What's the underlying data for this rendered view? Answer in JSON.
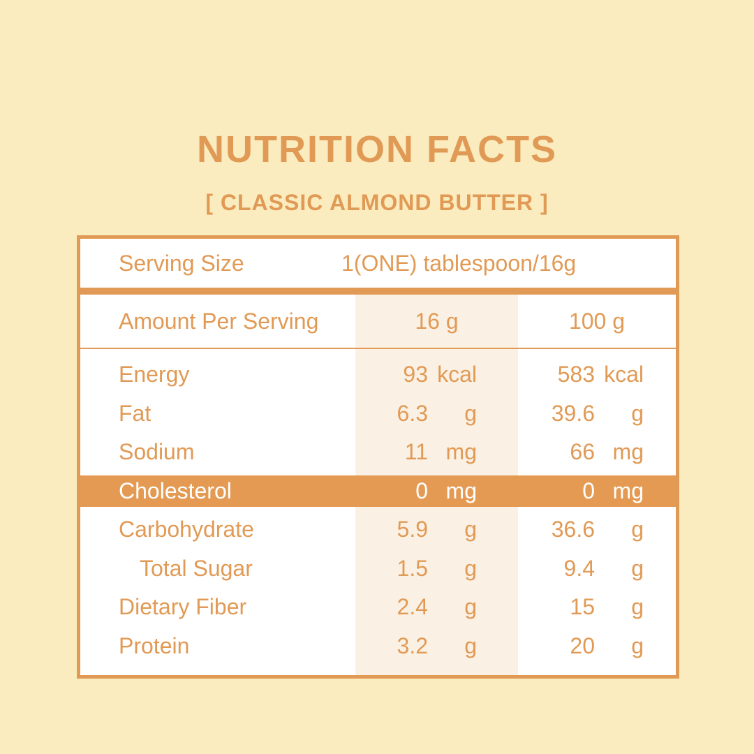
{
  "header": {
    "title": "NUTRITION FACTS",
    "subtitle": "[ CLASSIC ALMOND BUTTER ]"
  },
  "serving": {
    "label": "Serving Size",
    "value": "1(ONE) tablespoon/16g"
  },
  "table": {
    "header": {
      "amount_label": "Amount Per Serving",
      "col_serving": "16 g",
      "col_per_100": "100 g"
    },
    "rows": [
      {
        "label": "Energy",
        "v1": "93",
        "u1": "kcal",
        "v2": "583",
        "u2": "kcal"
      },
      {
        "label": "Fat",
        "v1": "6.3",
        "u1": "g",
        "v2": "39.6",
        "u2": "g"
      },
      {
        "label": "Sodium",
        "v1": "11",
        "u1": "mg",
        "v2": "66",
        "u2": "mg"
      },
      {
        "label": "Cholesterol",
        "v1": "0",
        "u1": "mg",
        "v2": "0",
        "u2": "mg"
      },
      {
        "label": "Carbohydrate",
        "v1": "5.9",
        "u1": "g",
        "v2": "36.6",
        "u2": "g"
      },
      {
        "label": "Total Sugar",
        "v1": "1.5",
        "u1": "g",
        "v2": "9.4",
        "u2": "g"
      },
      {
        "label": "Dietary Fiber",
        "v1": "2.4",
        "u1": "g",
        "v2": "15",
        "u2": "g"
      },
      {
        "label": "Protein",
        "v1": "3.2",
        "u1": "g",
        "v2": "20",
        "u2": "g"
      }
    ]
  },
  "colors": {
    "background": "#FAECBE",
    "accent": "#E19A55",
    "highlight_bg": "#E49A52",
    "highlight_text": "#FFFFFF",
    "shaded_column": "#FAF1E4",
    "surface": "#FFFFFF"
  }
}
